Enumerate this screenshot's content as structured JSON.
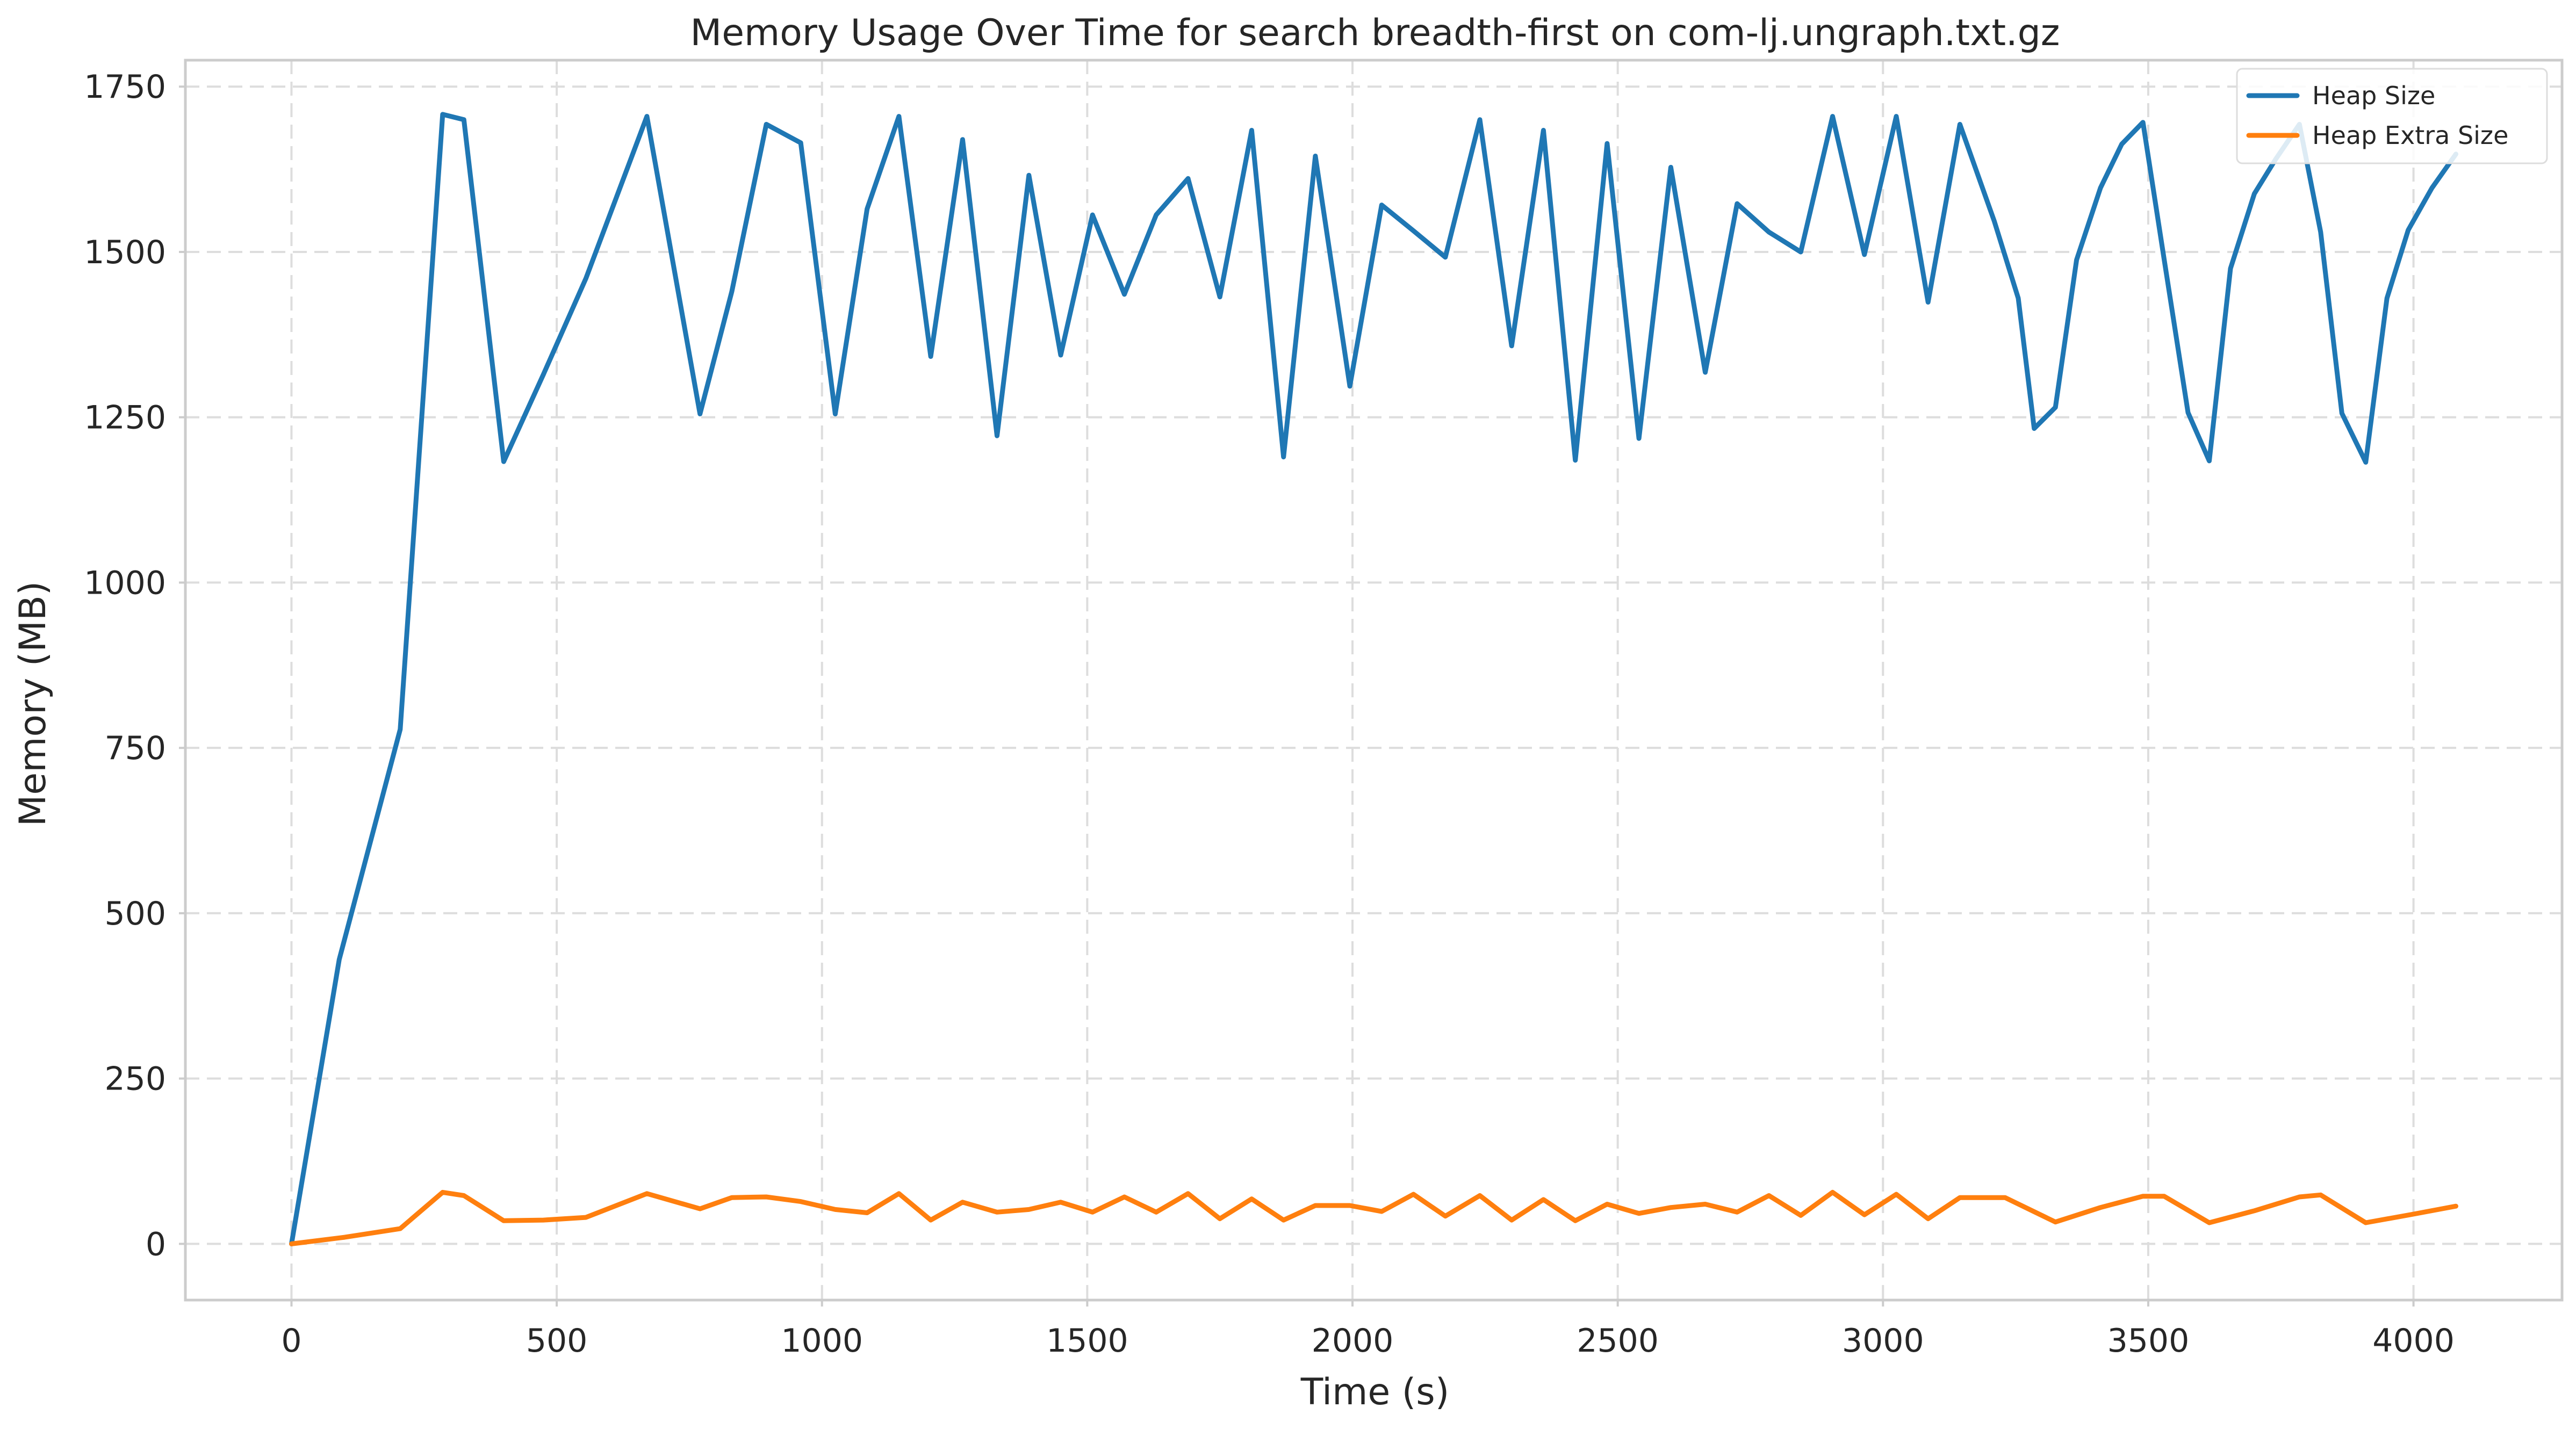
{
  "chart_data": {
    "type": "line",
    "title": "Memory Usage Over Time for search breadth-first on com-lj.ungraph.txt.gz",
    "xlabel": "Time (s)",
    "ylabel": "Memory (MB)",
    "xlim": [
      -200,
      4280
    ],
    "ylim": [
      -85,
      1790
    ],
    "xticks": [
      0,
      500,
      1000,
      1500,
      2000,
      2500,
      3000,
      3500,
      4000
    ],
    "xtick_labels": [
      "0",
      "500",
      "1000",
      "1500",
      "2000",
      "2500",
      "3000",
      "3500",
      "4000"
    ],
    "yticks": [
      0,
      250,
      500,
      750,
      1000,
      1250,
      1500,
      1750
    ],
    "ytick_labels": [
      "0",
      "250",
      "500",
      "750",
      "1000",
      "1250",
      "1500",
      "1750"
    ],
    "grid": true,
    "legend_position": "top-right",
    "series": [
      {
        "name": "Heap Size",
        "color": "#1f77b4",
        "points": [
          [
            0,
            0
          ],
          [
            90,
            430
          ],
          [
            205,
            778
          ],
          [
            285,
            1708
          ],
          [
            325,
            1700
          ],
          [
            400,
            1183
          ],
          [
            475,
            1315
          ],
          [
            555,
            1460
          ],
          [
            670,
            1705
          ],
          [
            770,
            1255
          ],
          [
            830,
            1440
          ],
          [
            895,
            1693
          ],
          [
            960,
            1665
          ],
          [
            1025,
            1255
          ],
          [
            1085,
            1565
          ],
          [
            1145,
            1705
          ],
          [
            1205,
            1342
          ],
          [
            1265,
            1670
          ],
          [
            1330,
            1222
          ],
          [
            1390,
            1616
          ],
          [
            1450,
            1344
          ],
          [
            1510,
            1556
          ],
          [
            1570,
            1436
          ],
          [
            1630,
            1556
          ],
          [
            1690,
            1611
          ],
          [
            1750,
            1432
          ],
          [
            1810,
            1684
          ],
          [
            1870,
            1190
          ],
          [
            1930,
            1645
          ],
          [
            1995,
            1297
          ],
          [
            2055,
            1571
          ],
          [
            2115,
            1532
          ],
          [
            2175,
            1492
          ],
          [
            2240,
            1700
          ],
          [
            2300,
            1358
          ],
          [
            2360,
            1684
          ],
          [
            2420,
            1185
          ],
          [
            2480,
            1664
          ],
          [
            2540,
            1218
          ],
          [
            2600,
            1628
          ],
          [
            2665,
            1318
          ],
          [
            2725,
            1573
          ],
          [
            2785,
            1530
          ],
          [
            2845,
            1500
          ],
          [
            2905,
            1705
          ],
          [
            2965,
            1496
          ],
          [
            3025,
            1705
          ],
          [
            3085,
            1424
          ],
          [
            3145,
            1693
          ],
          [
            3210,
            1546
          ],
          [
            3255,
            1430
          ],
          [
            3285,
            1233
          ],
          [
            3325,
            1265
          ],
          [
            3365,
            1488
          ],
          [
            3410,
            1597
          ],
          [
            3450,
            1663
          ],
          [
            3490,
            1696
          ],
          [
            3530,
            1489
          ],
          [
            3575,
            1257
          ],
          [
            3615,
            1184
          ],
          [
            3655,
            1475
          ],
          [
            3700,
            1588
          ],
          [
            3740,
            1640
          ],
          [
            3785,
            1693
          ],
          [
            3825,
            1530
          ],
          [
            3865,
            1256
          ],
          [
            3910,
            1182
          ],
          [
            3950,
            1430
          ],
          [
            3990,
            1533
          ],
          [
            4035,
            1597
          ],
          [
            4080,
            1648
          ]
        ]
      },
      {
        "name": "Heap Extra Size",
        "color": "#ff7f0e",
        "points": [
          [
            0,
            0
          ],
          [
            100,
            10
          ],
          [
            205,
            23
          ],
          [
            285,
            78
          ],
          [
            325,
            73
          ],
          [
            400,
            35
          ],
          [
            475,
            36
          ],
          [
            555,
            40
          ],
          [
            670,
            76
          ],
          [
            770,
            53
          ],
          [
            830,
            70
          ],
          [
            895,
            71
          ],
          [
            960,
            64
          ],
          [
            1025,
            52
          ],
          [
            1085,
            47
          ],
          [
            1145,
            76
          ],
          [
            1205,
            36
          ],
          [
            1265,
            63
          ],
          [
            1330,
            48
          ],
          [
            1390,
            52
          ],
          [
            1450,
            63
          ],
          [
            1510,
            48
          ],
          [
            1570,
            71
          ],
          [
            1630,
            48
          ],
          [
            1690,
            76
          ],
          [
            1750,
            38
          ],
          [
            1810,
            68
          ],
          [
            1870,
            36
          ],
          [
            1930,
            58
          ],
          [
            1995,
            58
          ],
          [
            2055,
            49
          ],
          [
            2115,
            75
          ],
          [
            2175,
            42
          ],
          [
            2240,
            73
          ],
          [
            2300,
            36
          ],
          [
            2360,
            67
          ],
          [
            2420,
            35
          ],
          [
            2480,
            60
          ],
          [
            2540,
            46
          ],
          [
            2600,
            55
          ],
          [
            2665,
            60
          ],
          [
            2725,
            48
          ],
          [
            2785,
            73
          ],
          [
            2845,
            43
          ],
          [
            2905,
            78
          ],
          [
            2965,
            44
          ],
          [
            3025,
            75
          ],
          [
            3085,
            38
          ],
          [
            3145,
            70
          ],
          [
            3230,
            70
          ],
          [
            3325,
            33
          ],
          [
            3410,
            55
          ],
          [
            3490,
            72
          ],
          [
            3530,
            72
          ],
          [
            3615,
            32
          ],
          [
            3700,
            50
          ],
          [
            3785,
            71
          ],
          [
            3825,
            74
          ],
          [
            3910,
            32
          ],
          [
            4000,
            45
          ],
          [
            4080,
            57
          ]
        ]
      }
    ]
  }
}
